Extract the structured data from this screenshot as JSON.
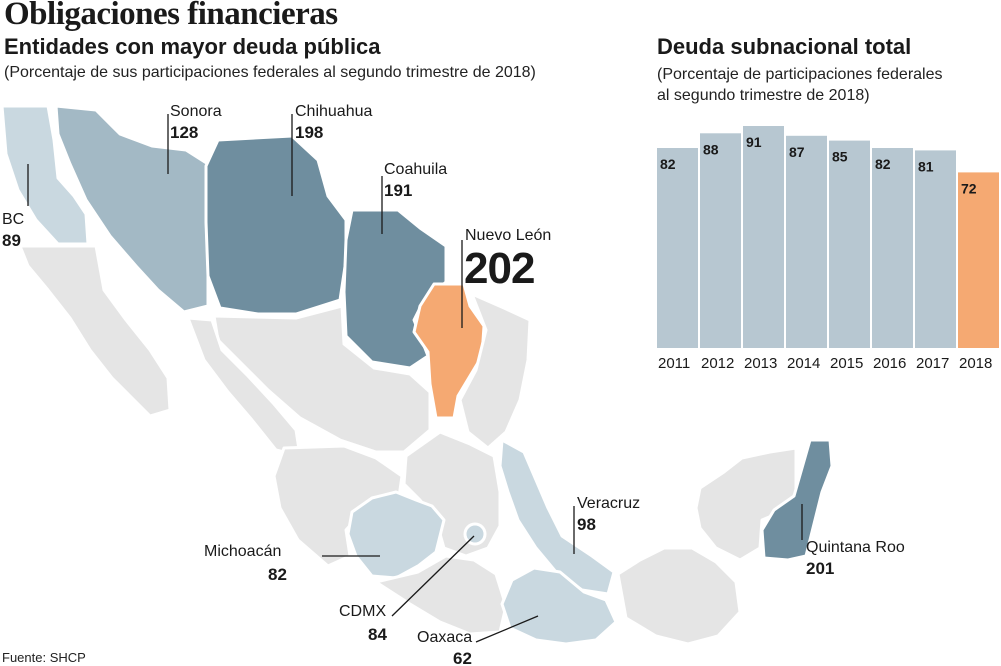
{
  "title": "Obligaciones financieras",
  "subtitle": "Entidades con mayor deuda pública",
  "map_note": "(Porcentaje de sus participaciones federales al segundo trimestre de 2018)",
  "source": "Fuente: SHCP",
  "colors": {
    "dark": "#6f8e9f",
    "medium": "#a3b9c5",
    "light": "#c9d8e0",
    "highlight": "#f5a972",
    "other": "#e5e5e5",
    "bar": "#b7c7d1"
  },
  "chart_data": [
    {
      "type": "choropleth-map",
      "title": "Entidades con mayor deuda pública",
      "subtitle": "(Porcentaje de sus participaciones federales al segundo trimestre de 2018)",
      "states": [
        {
          "name": "BC",
          "value": 89
        },
        {
          "name": "Sonora",
          "value": 128
        },
        {
          "name": "Chihuahua",
          "value": 198
        },
        {
          "name": "Coahuila",
          "value": 191
        },
        {
          "name": "Nuevo León",
          "value": 202
        },
        {
          "name": "Veracruz",
          "value": 98
        },
        {
          "name": "Michoacán",
          "value": 82
        },
        {
          "name": "CDMX",
          "value": 84
        },
        {
          "name": "Oaxaca",
          "value": 62
        },
        {
          "name": "Quintana Roo",
          "value": 201
        }
      ]
    },
    {
      "type": "bar",
      "title": "Deuda subnacional total",
      "subtitle": "(Porcentaje de participaciones federales al segundo trimestre de 2018)",
      "categories": [
        "2011",
        "2012",
        "2013",
        "2014",
        "2015",
        "2016",
        "2017",
        "2018"
      ],
      "values": [
        82,
        88,
        91,
        87,
        85,
        82,
        81,
        72
      ],
      "highlight": "2018",
      "ylim": [
        0,
        91
      ]
    }
  ]
}
